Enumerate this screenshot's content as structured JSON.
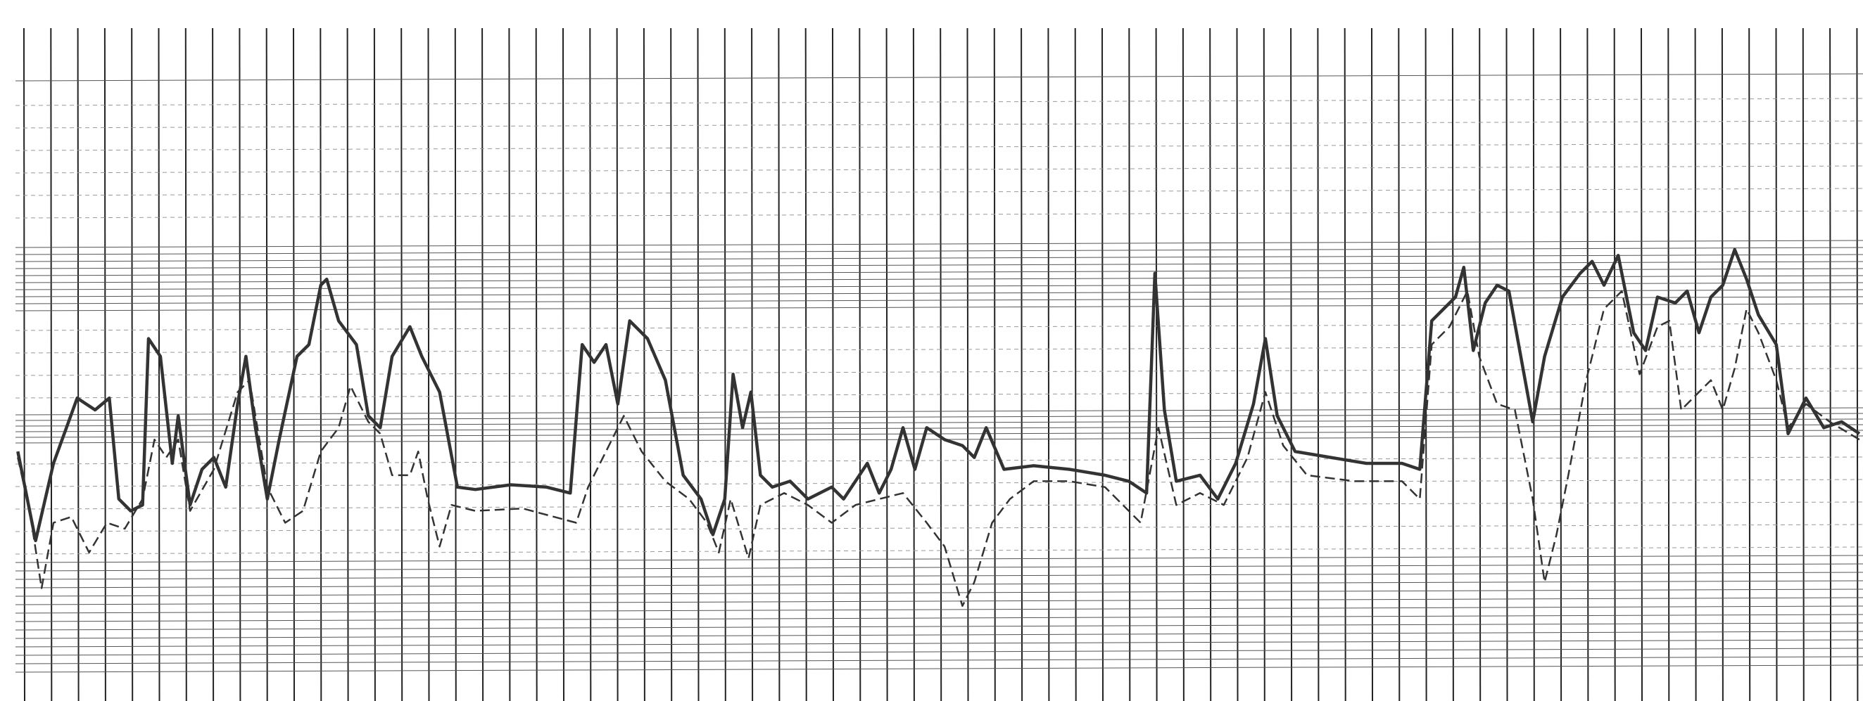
{
  "chart_data": {
    "type": "line",
    "xlim": [
      0,
      1568
    ],
    "ylim": [
      0,
      590
    ],
    "series": [
      {
        "color": "#333333",
        "line_style": "solid",
        "x": [
          15,
          30,
          45,
          65,
          80,
          92,
          100,
          110,
          120,
          125,
          135,
          145,
          150,
          160,
          170,
          180,
          190,
          200,
          207,
          215,
          225,
          235,
          250,
          260,
          270,
          275,
          285,
          300,
          310,
          320,
          330,
          345,
          355,
          370,
          385,
          400,
          430,
          460,
          480,
          490,
          500,
          510,
          520,
          530,
          545,
          560,
          575,
          590,
          600,
          610,
          617,
          625,
          632,
          640,
          650,
          665,
          680,
          700,
          710,
          730,
          740,
          750,
          760,
          770,
          780,
          795,
          810,
          820,
          830,
          845,
          870,
          900,
          930,
          950,
          965,
          972,
          980,
          990,
          1010,
          1025,
          1040,
          1055,
          1065,
          1075,
          1090,
          1120,
          1150,
          1180,
          1195,
          1205,
          1215,
          1225,
          1232,
          1240,
          1250,
          1260,
          1270,
          1280,
          1290,
          1300,
          1315,
          1330,
          1340,
          1350,
          1362,
          1375,
          1385,
          1395,
          1410,
          1420,
          1430,
          1440,
          1450,
          1460,
          1470,
          1480,
          1495,
          1505,
          1520,
          1535,
          1550,
          1565
        ],
        "values": [
          210,
          135,
          200,
          255,
          245,
          255,
          170,
          160,
          165,
          305,
          290,
          200,
          240,
          165,
          195,
          205,
          180,
          250,
          290,
          230,
          170,
          220,
          290,
          300,
          350,
          355,
          320,
          300,
          240,
          230,
          290,
          315,
          290,
          260,
          180,
          178,
          182,
          180,
          175,
          300,
          285,
          300,
          250,
          320,
          305,
          270,
          190,
          170,
          140,
          170,
          275,
          230,
          260,
          190,
          180,
          185,
          170,
          180,
          170,
          200,
          175,
          195,
          230,
          195,
          230,
          220,
          215,
          205,
          230,
          195,
          198,
          195,
          190,
          185,
          175,
          360,
          245,
          185,
          190,
          170,
          200,
          250,
          305,
          240,
          210,
          205,
          200,
          200,
          195,
          320,
          330,
          340,
          365,
          295,
          335,
          350,
          345,
          290,
          235,
          290,
          340,
          360,
          370,
          350,
          375,
          310,
          295,
          340,
          335,
          345,
          310,
          340,
          350,
          380,
          355,
          325,
          300,
          225,
          255,
          230,
          235,
          225
        ]
      },
      {
        "color": "#333333",
        "line_style": "dashed",
        "x": [
          15,
          25,
          35,
          45,
          60,
          75,
          90,
          105,
          120,
          130,
          140,
          150,
          160,
          180,
          200,
          210,
          225,
          240,
          255,
          270,
          285,
          295,
          310,
          320,
          330,
          345,
          352,
          360,
          370,
          380,
          400,
          440,
          485,
          495,
          510,
          525,
          540,
          560,
          580,
          595,
          605,
          615,
          630,
          640,
          660,
          680,
          700,
          720,
          740,
          760,
          780,
          795,
          810,
          820,
          835,
          850,
          870,
          900,
          930,
          960,
          975,
          990,
          1010,
          1030,
          1050,
          1065,
          1080,
          1100,
          1140,
          1180,
          1195,
          1205,
          1220,
          1235,
          1245,
          1260,
          1275,
          1290,
          1300,
          1310,
          1320,
          1335,
          1350,
          1365,
          1380,
          1395,
          1405,
          1415,
          1430,
          1440,
          1450,
          1460,
          1470,
          1480,
          1495,
          1505,
          1520,
          1540,
          1565
        ],
        "values": [
          205,
          160,
          95,
          150,
          155,
          125,
          150,
          145,
          170,
          220,
          205,
          220,
          160,
          195,
          260,
          270,
          180,
          150,
          160,
          210,
          230,
          265,
          235,
          225,
          190,
          190,
          210,
          170,
          130,
          165,
          160,
          162,
          150,
          180,
          210,
          240,
          210,
          185,
          170,
          150,
          125,
          170,
          120,
          165,
          175,
          165,
          150,
          165,
          170,
          175,
          150,
          130,
          80,
          100,
          150,
          170,
          185,
          185,
          180,
          150,
          230,
          165,
          175,
          165,
          205,
          260,
          215,
          190,
          185,
          185,
          170,
          300,
          315,
          345,
          290,
          250,
          245,
          170,
          100,
          140,
          190,
          270,
          330,
          345,
          275,
          315,
          320,
          245,
          260,
          270,
          245,
          280,
          330,
          310,
          270,
          230,
          250,
          235,
          220
        ]
      }
    ]
  }
}
